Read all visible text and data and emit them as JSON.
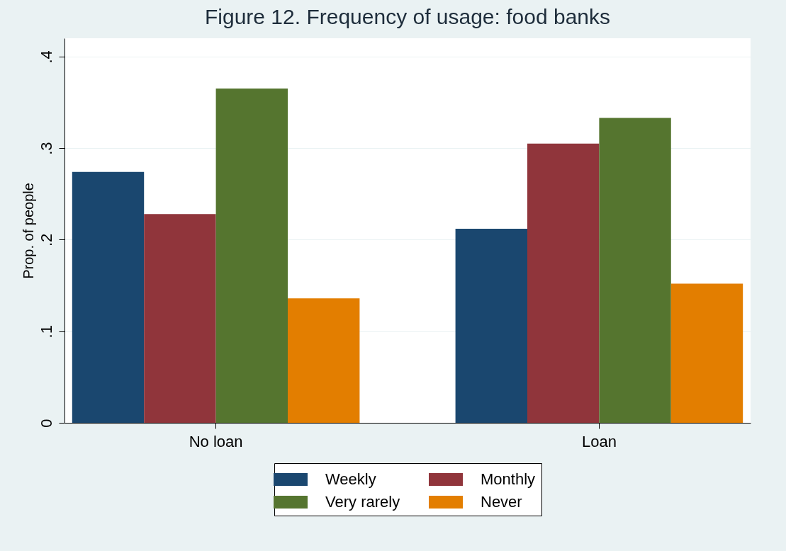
{
  "chart_data": {
    "type": "bar",
    "title": "Figure 12. Frequency of usage: food banks",
    "ylabel": "Prop. of people",
    "categories": [
      "No loan",
      "Loan"
    ],
    "series": [
      {
        "name": "Weekly",
        "color": "#1a476f",
        "values": [
          0.274,
          0.212
        ]
      },
      {
        "name": "Monthly",
        "color": "#90353b",
        "values": [
          0.228,
          0.305
        ]
      },
      {
        "name": "Very rarely",
        "color": "#55752f",
        "values": [
          0.365,
          0.333
        ]
      },
      {
        "name": "Never",
        "color": "#e37e00",
        "values": [
          0.136,
          0.152
        ]
      }
    ],
    "ylim": [
      0,
      0.42
    ],
    "yticks": [
      {
        "value": 0,
        "label": "0"
      },
      {
        "value": 0.1,
        "label": ".1"
      },
      {
        "value": 0.2,
        "label": ".2"
      },
      {
        "value": 0.3,
        "label": ".3"
      },
      {
        "value": 0.4,
        "label": ".4"
      }
    ],
    "grid": "y",
    "legend": "bottom"
  }
}
